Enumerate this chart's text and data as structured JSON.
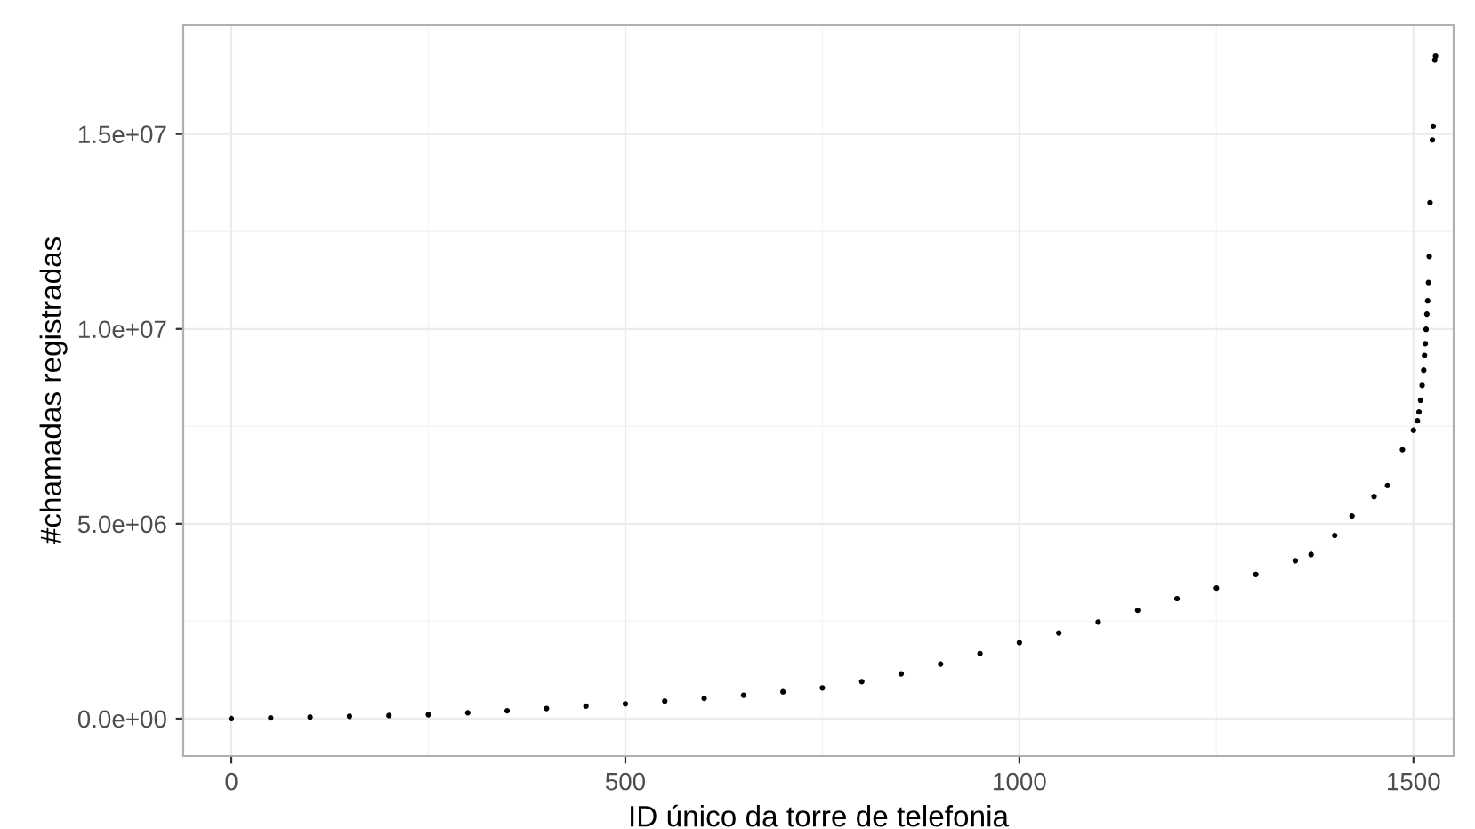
{
  "chart_data": {
    "type": "scatter",
    "xlabel": "ID único da torre de telefonia",
    "ylabel": "#chamadas registradas",
    "series": [
      {
        "color": "#000000",
        "x": [
          0,
          50,
          100,
          150,
          200,
          250,
          300,
          350,
          400,
          450,
          500,
          550,
          600,
          650,
          700,
          750,
          800,
          850,
          900,
          950,
          1000,
          1050,
          1100,
          1150,
          1200,
          1250,
          1300,
          1350,
          1370,
          1400,
          1422,
          1450,
          1467,
          1486,
          1500,
          1505,
          1507,
          1509,
          1511,
          1513,
          1514,
          1515,
          1516,
          1517,
          1518,
          1519,
          1520,
          1521,
          1524,
          1525,
          1527,
          1528
        ],
        "values": [
          0,
          20000,
          40000,
          60000,
          80000,
          100000,
          150000,
          200000,
          260000,
          320000,
          380000,
          450000,
          520000,
          600000,
          690000,
          790000,
          950000,
          1150000,
          1400000,
          1670000,
          1950000,
          2200000,
          2480000,
          2780000,
          3080000,
          3350000,
          3700000,
          4050000,
          4210000,
          4700000,
          5200000,
          5700000,
          5980000,
          6900000,
          7400000,
          7640000,
          7870000,
          8170000,
          8550000,
          8940000,
          9320000,
          9620000,
          9990000,
          10380000,
          10720000,
          11190000,
          11860000,
          13240000,
          14850000,
          15200000,
          16900000,
          17000000
        ]
      }
    ],
    "marker": "circle",
    "grid": true,
    "xlim": [
      -61,
      1551
    ],
    "xticks": [
      0,
      500,
      1000,
      1500
    ],
    "ylim": [
      -960000,
      17800000
    ],
    "yticks": [
      {
        "value": 0,
        "label": "0.0e+00"
      },
      {
        "value": 5000000,
        "label": "5.0e+06"
      },
      {
        "value": 10000000,
        "label": "1.0e+07"
      },
      {
        "value": 15000000,
        "label": "1.5e+07"
      }
    ]
  }
}
